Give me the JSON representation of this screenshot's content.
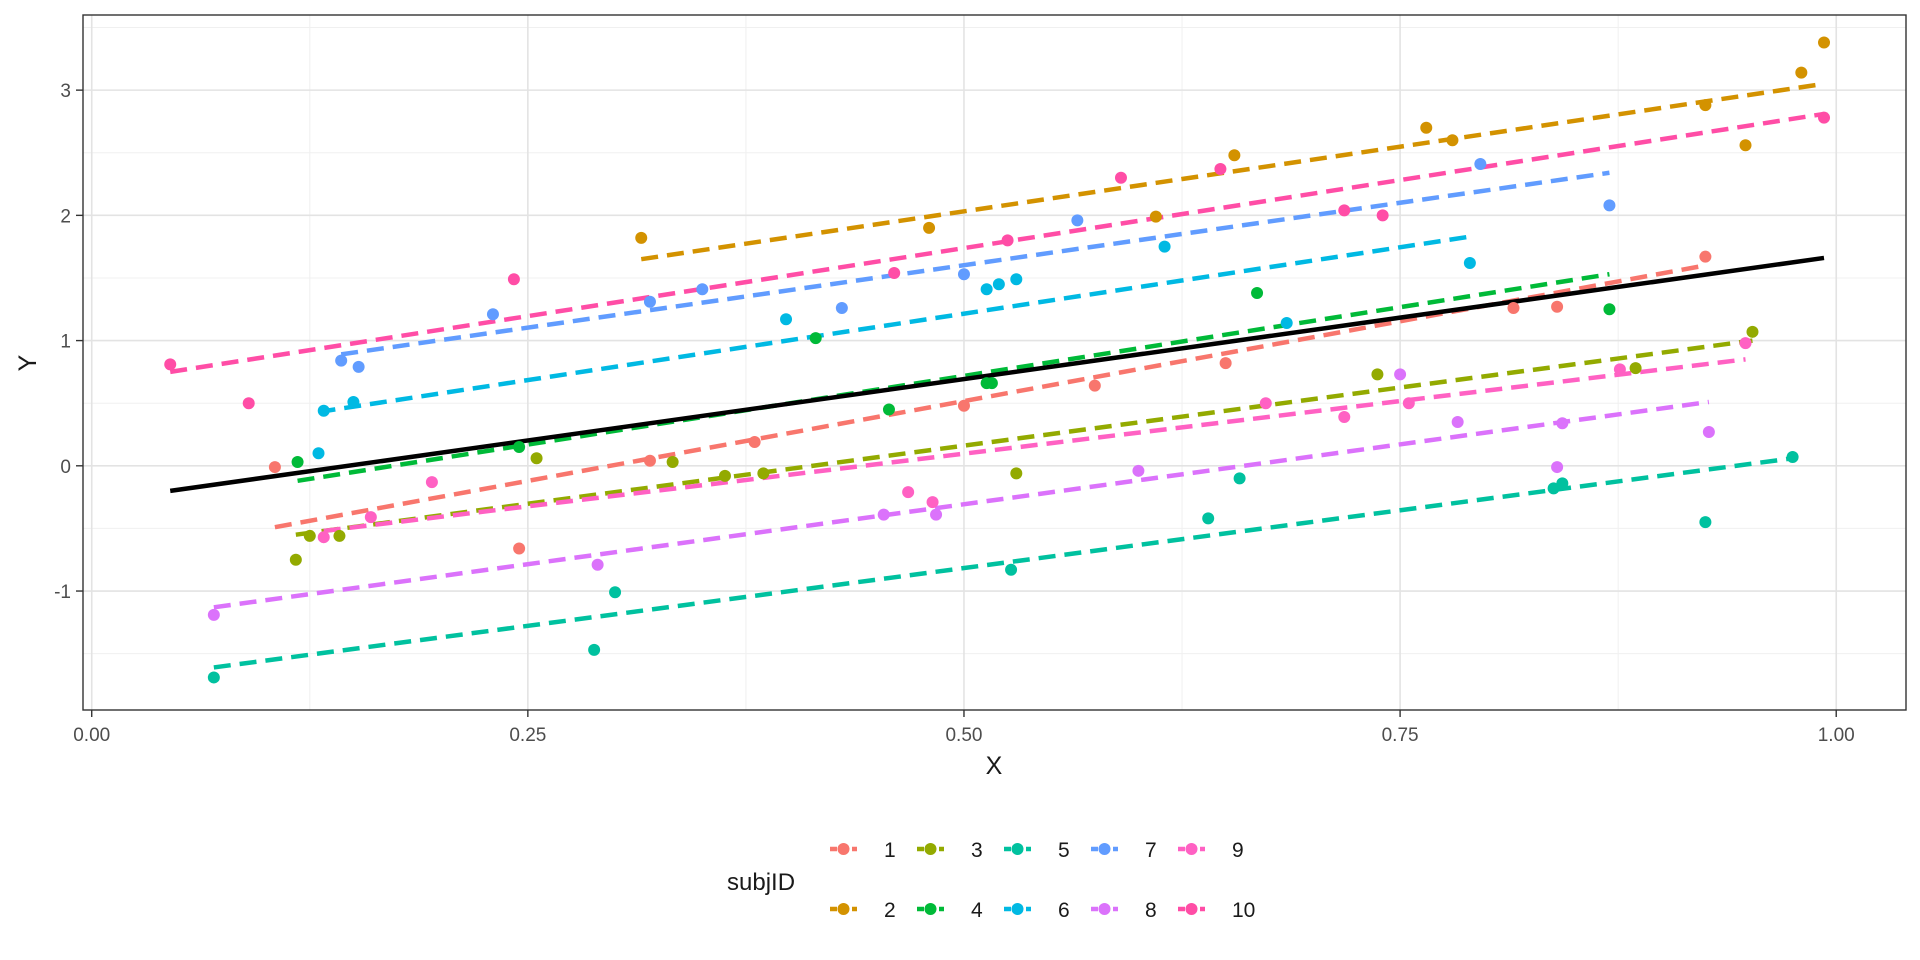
{
  "chart_data": {
    "type": "scatter",
    "title": "",
    "xlabel": "X",
    "ylabel": "Y",
    "xlim": [
      -0.005,
      1.04
    ],
    "ylim": [
      -1.95,
      3.6
    ],
    "x_ticks": [
      0.0,
      0.25,
      0.5,
      0.75,
      1.0
    ],
    "x_tick_labels": [
      "0.00",
      "0.25",
      "0.50",
      "0.75",
      "1.00"
    ],
    "y_ticks": [
      -1,
      0,
      1,
      2,
      3
    ],
    "y_tick_labels": [
      "-1",
      "0",
      "1",
      "2",
      "3"
    ],
    "grid": true,
    "legend": {
      "title": "subjID",
      "position": "bottom",
      "ncol": 5
    },
    "overall_fit": {
      "x": [
        0.045,
        0.993
      ],
      "y": [
        -0.2,
        1.66
      ],
      "color": "#000000"
    },
    "series": [
      {
        "name": "1",
        "color": "#F8766D",
        "points": [
          [
            0.105,
            -0.01
          ],
          [
            0.245,
            -0.66
          ],
          [
            0.32,
            0.04
          ],
          [
            0.38,
            0.19
          ],
          [
            0.5,
            0.48
          ],
          [
            0.575,
            0.64
          ],
          [
            0.65,
            0.82
          ],
          [
            0.815,
            1.26
          ],
          [
            0.84,
            1.27
          ],
          [
            0.925,
            1.67
          ]
        ],
        "fit": {
          "x": [
            0.105,
            0.925
          ],
          "y": [
            -0.49,
            1.6
          ]
        }
      },
      {
        "name": "2",
        "color": "#D39200",
        "points": [
          [
            0.315,
            1.82
          ],
          [
            0.48,
            1.9
          ],
          [
            0.61,
            1.99
          ],
          [
            0.655,
            2.48
          ],
          [
            0.765,
            2.7
          ],
          [
            0.78,
            2.6
          ],
          [
            0.925,
            2.88
          ],
          [
            0.948,
            2.56
          ],
          [
            0.98,
            3.14
          ],
          [
            0.993,
            3.38
          ]
        ],
        "fit": {
          "x": [
            0.315,
            0.993
          ],
          "y": [
            1.65,
            3.05
          ]
        }
      },
      {
        "name": "3",
        "color": "#93AA00",
        "points": [
          [
            0.117,
            -0.75
          ],
          [
            0.125,
            -0.56
          ],
          [
            0.142,
            -0.56
          ],
          [
            0.255,
            0.06
          ],
          [
            0.333,
            0.03
          ],
          [
            0.363,
            -0.08
          ],
          [
            0.385,
            -0.06
          ],
          [
            0.53,
            -0.06
          ],
          [
            0.737,
            0.73
          ],
          [
            0.885,
            0.78
          ],
          [
            0.952,
            1.07
          ]
        ],
        "fit": {
          "x": [
            0.117,
            0.952
          ],
          "y": [
            -0.55,
            1.0
          ]
        }
      },
      {
        "name": "4",
        "color": "#00BA38",
        "points": [
          [
            0.118,
            0.03
          ],
          [
            0.245,
            0.15
          ],
          [
            0.415,
            1.02
          ],
          [
            0.457,
            0.45
          ],
          [
            0.513,
            0.66
          ],
          [
            0.516,
            0.66
          ],
          [
            0.668,
            1.38
          ],
          [
            0.87,
            1.25
          ]
        ],
        "fit": {
          "x": [
            0.118,
            0.87
          ],
          "y": [
            -0.12,
            1.53
          ]
        }
      },
      {
        "name": "5",
        "color": "#00C19F",
        "points": [
          [
            0.07,
            -1.69
          ],
          [
            0.288,
            -1.47
          ],
          [
            0.3,
            -1.01
          ],
          [
            0.527,
            -0.83
          ],
          [
            0.64,
            -0.42
          ],
          [
            0.658,
            -0.1
          ],
          [
            0.838,
            -0.18
          ],
          [
            0.843,
            -0.14
          ],
          [
            0.925,
            -0.45
          ],
          [
            0.975,
            0.07
          ]
        ],
        "fit": {
          "x": [
            0.07,
            0.975
          ],
          "y": [
            -1.61,
            0.06
          ]
        }
      },
      {
        "name": "6",
        "color": "#00B9E3",
        "points": [
          [
            0.13,
            0.1
          ],
          [
            0.133,
            0.44
          ],
          [
            0.15,
            0.51
          ],
          [
            0.398,
            1.17
          ],
          [
            0.513,
            1.41
          ],
          [
            0.52,
            1.45
          ],
          [
            0.53,
            1.49
          ],
          [
            0.615,
            1.75
          ],
          [
            0.685,
            1.14
          ],
          [
            0.79,
            1.62
          ]
        ],
        "fit": {
          "x": [
            0.13,
            0.79
          ],
          "y": [
            0.43,
            1.83
          ]
        }
      },
      {
        "name": "7",
        "color": "#619CFF",
        "points": [
          [
            0.143,
            0.84
          ],
          [
            0.153,
            0.79
          ],
          [
            0.23,
            1.21
          ],
          [
            0.32,
            1.31
          ],
          [
            0.35,
            1.41
          ],
          [
            0.43,
            1.26
          ],
          [
            0.5,
            1.53
          ],
          [
            0.565,
            1.96
          ],
          [
            0.796,
            2.41
          ],
          [
            0.87,
            2.08
          ]
        ],
        "fit": {
          "x": [
            0.143,
            0.87
          ],
          "y": [
            0.89,
            2.34
          ]
        }
      },
      {
        "name": "8",
        "color": "#DB72FB",
        "points": [
          [
            0.07,
            -1.19
          ],
          [
            0.29,
            -0.79
          ],
          [
            0.454,
            -0.39
          ],
          [
            0.484,
            -0.39
          ],
          [
            0.6,
            -0.04
          ],
          [
            0.75,
            0.73
          ],
          [
            0.783,
            0.35
          ],
          [
            0.84,
            -0.01
          ],
          [
            0.843,
            0.34
          ],
          [
            0.927,
            0.27
          ]
        ],
        "fit": {
          "x": [
            0.07,
            0.927
          ],
          "y": [
            -1.13,
            0.51
          ]
        }
      },
      {
        "name": "9",
        "color": "#FF61C3",
        "points": [
          [
            0.133,
            -0.57
          ],
          [
            0.16,
            -0.41
          ],
          [
            0.195,
            -0.13
          ],
          [
            0.468,
            -0.21
          ],
          [
            0.482,
            -0.29
          ],
          [
            0.673,
            0.5
          ],
          [
            0.718,
            0.39
          ],
          [
            0.755,
            0.5
          ],
          [
            0.876,
            0.77
          ],
          [
            0.948,
            0.98
          ]
        ],
        "fit": {
          "x": [
            0.133,
            0.948
          ],
          "y": [
            -0.52,
            0.85
          ]
        }
      },
      {
        "name": "10",
        "color": "#FF4DA6",
        "points": [
          [
            0.045,
            0.81
          ],
          [
            0.09,
            0.5
          ],
          [
            0.242,
            1.49
          ],
          [
            0.46,
            1.54
          ],
          [
            0.525,
            1.8
          ],
          [
            0.59,
            2.3
          ],
          [
            0.647,
            2.37
          ],
          [
            0.718,
            2.04
          ],
          [
            0.74,
            2.0
          ],
          [
            0.993,
            2.78
          ]
        ],
        "fit": {
          "x": [
            0.045,
            0.993
          ],
          "y": [
            0.75,
            2.81
          ]
        }
      }
    ]
  }
}
